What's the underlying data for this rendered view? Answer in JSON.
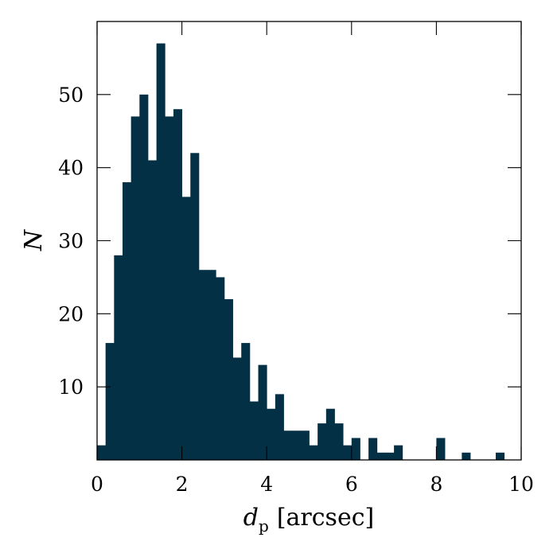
{
  "chart_data": {
    "type": "bar",
    "title": "",
    "xlabel": {
      "symbol": "d",
      "subscript": "p",
      "unit": "[arcsec]"
    },
    "ylabel": "N",
    "xlim": [
      0,
      10
    ],
    "ylim": [
      0,
      60
    ],
    "bin_width": 0.2,
    "x_ticks": [
      0,
      2,
      4,
      6,
      8,
      10
    ],
    "x_tick_labels": [
      "0",
      "2",
      "4",
      "6",
      "8",
      "10"
    ],
    "y_ticks": [
      10,
      20,
      30,
      40,
      50
    ],
    "y_tick_labels": [
      "10",
      "20",
      "30",
      "40",
      "50"
    ],
    "bar_color": "#033045",
    "grid": false,
    "bin_edges_start": [
      0.0,
      0.2,
      0.4,
      0.6,
      0.8,
      1.0,
      1.2,
      1.4,
      1.6,
      1.8,
      2.0,
      2.2,
      2.4,
      2.6,
      2.8,
      3.0,
      3.2,
      3.4,
      3.6,
      3.8,
      4.0,
      4.2,
      4.4,
      4.6,
      4.8,
      5.0,
      5.2,
      5.4,
      5.6,
      5.8,
      6.0,
      6.2,
      6.4,
      6.6,
      6.8,
      7.0,
      7.2,
      7.4,
      7.6,
      7.8,
      8.0,
      8.2,
      8.4,
      8.6,
      8.8,
      9.0,
      9.2,
      9.4,
      9.6,
      9.8
    ],
    "values": [
      2,
      16,
      28,
      38,
      47,
      50,
      41,
      57,
      47,
      48,
      36,
      42,
      26,
      26,
      25,
      22,
      14,
      16,
      8,
      13,
      7,
      9,
      4,
      4,
      4,
      2,
      5,
      7,
      5,
      2,
      3,
      0,
      3,
      1,
      1,
      2,
      0,
      0,
      0,
      0,
      3,
      0,
      0,
      1,
      0,
      0,
      0,
      1,
      0,
      0
    ]
  }
}
